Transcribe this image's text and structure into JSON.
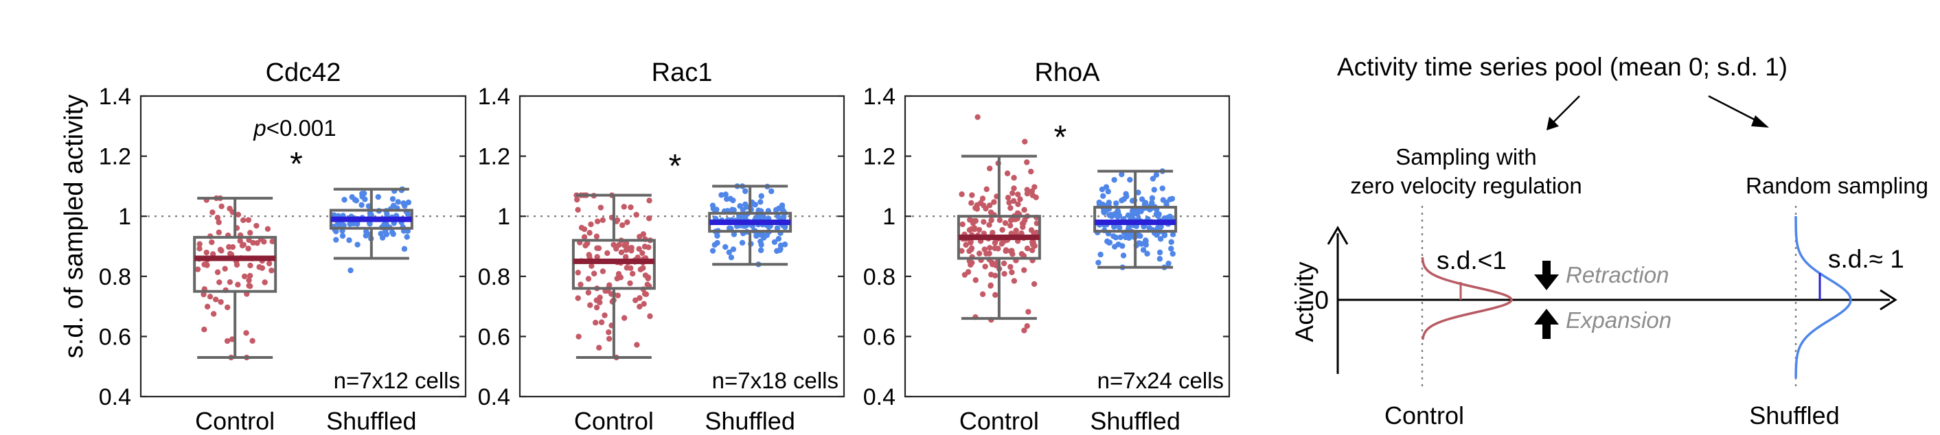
{
  "ylabel": "s.d. of sampled activity",
  "reference_level": 1,
  "colors": {
    "control_points": "#c55a67",
    "control_median": "#8b1f35",
    "shuffled_points": "#4f86e8",
    "shuffled_median": "#2a1fd6",
    "box": "#666666"
  },
  "chart_data": [
    {
      "type": "box",
      "title": "Cdc42",
      "categories": [
        "Control",
        "Shuffled"
      ],
      "ylim": [
        0.4,
        1.4
      ],
      "yticks": [
        "0.4",
        "0.6",
        "0.8",
        "1",
        "1.2",
        "1.4"
      ],
      "n_label": "n=7x12 cells",
      "significance": "*",
      "pvalue": {
        "prefix": "p",
        "text": "<0.001"
      },
      "groups": [
        {
          "name": "Control",
          "min": 0.53,
          "q1": 0.75,
          "median": 0.86,
          "q3": 0.93,
          "max": 1.06,
          "n_points": 84,
          "points_low": 0.53,
          "points_high": 1.06
        },
        {
          "name": "Shuffled",
          "min": 0.86,
          "q1": 0.96,
          "median": 0.99,
          "q3": 1.02,
          "max": 1.09,
          "n_points": 84,
          "points_low": 0.82,
          "points_high": 1.09
        }
      ]
    },
    {
      "type": "box",
      "title": "Rac1",
      "categories": [
        "Control",
        "Shuffled"
      ],
      "ylim": [
        0.4,
        1.4
      ],
      "yticks": [
        "0.4",
        "0.6",
        "0.8",
        "1",
        "1.2",
        "1.4"
      ],
      "n_label": "n=7x18 cells",
      "significance": "*",
      "groups": [
        {
          "name": "Control",
          "min": 0.53,
          "q1": 0.76,
          "median": 0.85,
          "q3": 0.92,
          "max": 1.07,
          "n_points": 126,
          "points_low": 0.53,
          "points_high": 1.07
        },
        {
          "name": "Shuffled",
          "min": 0.84,
          "q1": 0.95,
          "median": 0.98,
          "q3": 1.01,
          "max": 1.1,
          "n_points": 126,
          "points_low": 0.84,
          "points_high": 1.1
        }
      ]
    },
    {
      "type": "box",
      "title": "RhoA",
      "categories": [
        "Control",
        "Shuffled"
      ],
      "ylim": [
        0.4,
        1.4
      ],
      "yticks": [
        "0.4",
        "0.6",
        "0.8",
        "1",
        "1.2",
        "1.4"
      ],
      "n_label": "n=7x24 cells",
      "significance": "*",
      "groups": [
        {
          "name": "Control",
          "min": 0.66,
          "q1": 0.86,
          "median": 0.93,
          "q3": 1.0,
          "max": 1.2,
          "n_points": 168,
          "points_low": 0.62,
          "points_high": 1.33
        },
        {
          "name": "Shuffled",
          "min": 0.83,
          "q1": 0.95,
          "median": 0.98,
          "q3": 1.03,
          "max": 1.15,
          "n_points": 168,
          "points_low": 0.83,
          "points_high": 1.15
        }
      ]
    }
  ],
  "schematic": {
    "title": "Activity time series pool (mean 0; s.d. 1)",
    "left_caption_line1": "Sampling with",
    "left_caption_line2": "zero velocity regulation",
    "right_caption": "Random sampling",
    "y_axis_label": "Activity",
    "zero_label": "0",
    "sd_less": "s.d.<1",
    "sd_approx": "s.d.≈ 1",
    "retraction": "Retraction",
    "expansion": "Expansion",
    "left_label": "Control",
    "right_label": "Shuffled"
  }
}
